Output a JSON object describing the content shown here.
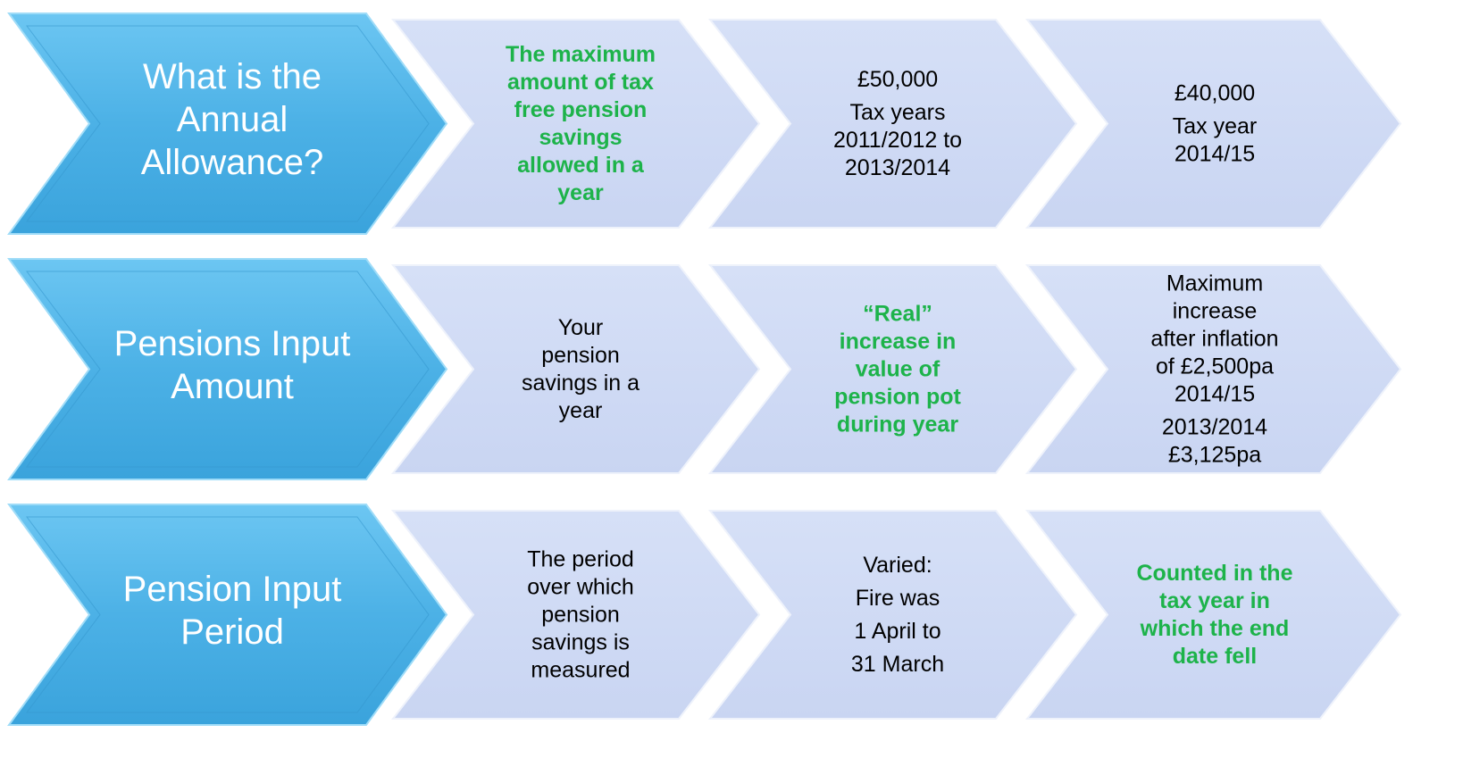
{
  "rows": [
    {
      "title": "What is the Annual Allowance?",
      "cells": [
        {
          "color": "#1db34a",
          "bold": true,
          "paragraphs": [
            "The maximum amount of tax free pension savings allowed in a year"
          ]
        },
        {
          "color": "#000000",
          "bold": false,
          "paragraphs": [
            "£50,000",
            "Tax years 2011/2012 to 2013/2014"
          ]
        },
        {
          "color": "#000000",
          "bold": false,
          "paragraphs": [
            "£40,000",
            "Tax year 2014/15"
          ]
        }
      ]
    },
    {
      "title": "Pensions Input Amount",
      "cells": [
        {
          "color": "#000000",
          "bold": false,
          "paragraphs": [
            "Your pension savings in a year"
          ]
        },
        {
          "color": "#1db34a",
          "bold": true,
          "paragraphs": [
            "“Real” increase in value of pension pot during year"
          ]
        },
        {
          "color": "#000000",
          "bold": false,
          "paragraphs": [
            "Maximum increase after inflation of £2,500pa 2014/15",
            "2013/2014 £3,125pa"
          ]
        }
      ]
    },
    {
      "title": "Pension Input Period",
      "cells": [
        {
          "color": "#000000",
          "bold": false,
          "paragraphs": [
            "The period over which pension savings is measured"
          ]
        },
        {
          "color": "#000000",
          "bold": false,
          "paragraphs": [
            "Varied:",
            "Fire was",
            "1 April to",
            "31 March"
          ]
        },
        {
          "color": "#1db34a",
          "bold": true,
          "paragraphs": [
            "Counted in the tax year in which the end date fell"
          ]
        }
      ]
    }
  ]
}
